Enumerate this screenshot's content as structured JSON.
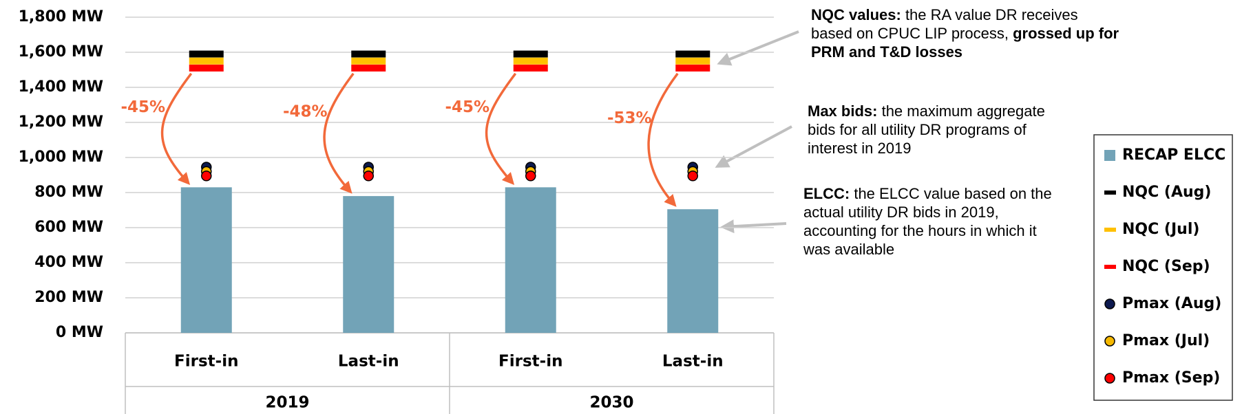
{
  "chart_data": {
    "type": "bar",
    "categories": [
      "First-in",
      "Last-in",
      "First-in",
      "Last-in"
    ],
    "groups": [
      {
        "label": "2019",
        "span": 2
      },
      {
        "label": "2030",
        "span": 2
      }
    ],
    "annotations": [
      "-45%",
      "-48%",
      "-45%",
      "-53%"
    ],
    "series": [
      {
        "name": "RECAP ELCC",
        "color": "#72a3b7",
        "marker": "bar",
        "values": [
          830,
          780,
          830,
          705
        ]
      },
      {
        "name": "NQC (Aug)",
        "color": "#000000",
        "marker": "dash",
        "values": [
          1590,
          1590,
          1590,
          1590
        ]
      },
      {
        "name": "NQC (Jul)",
        "color": "#ffc000",
        "marker": "dash",
        "values": [
          1550,
          1550,
          1550,
          1550
        ]
      },
      {
        "name": "NQC (Sep)",
        "color": "#ff0000",
        "marker": "dash",
        "values": [
          1510,
          1510,
          1510,
          1510
        ]
      },
      {
        "name": "Pmax (Aug)",
        "color": "#0d1a4f",
        "marker": "circle",
        "values": [
          945,
          945,
          945,
          945
        ]
      },
      {
        "name": "Pmax (Jul)",
        "color": "#f5b800",
        "marker": "circle",
        "values": [
          920,
          920,
          920,
          920
        ]
      },
      {
        "name": "Pmax (Sep)",
        "color": "#ff0000",
        "marker": "circle",
        "values": [
          895,
          895,
          895,
          895
        ]
      }
    ],
    "ylim": [
      0,
      1800
    ],
    "yticks": [
      {
        "value": 0,
        "label": "0 MW"
      },
      {
        "value": 200,
        "label": "200 MW"
      },
      {
        "value": 400,
        "label": "400 MW"
      },
      {
        "value": 600,
        "label": "600 MW"
      },
      {
        "value": 800,
        "label": "800 MW"
      },
      {
        "value": 1000,
        "label": "1,000 MW"
      },
      {
        "value": 1200,
        "label": "1,200 MW"
      },
      {
        "value": 1400,
        "label": "1,400 MW"
      },
      {
        "value": 1600,
        "label": "1,600 MW"
      },
      {
        "value": 1800,
        "label": "1,800 MW"
      }
    ],
    "grid": true,
    "legend": "right",
    "notes": [
      {
        "parts": [
          {
            "text": "NQC values:",
            "bold": true
          },
          {
            "text": " the RA value DR receives based on CPUC LIP process, "
          },
          {
            "text": "grossed up for PRM and T&D losses",
            "bold": true
          }
        ]
      },
      {
        "parts": [
          {
            "text": "Max bids:",
            "bold": true
          },
          {
            "text": " the maximum aggregate bids for all utility DR programs of interest in 2019"
          }
        ]
      },
      {
        "parts": [
          {
            "text": "ELCC:",
            "bold": true
          },
          {
            "text": " the ELCC value based on the actual utility DR bids in 2019, accounting for the hours in which it was available"
          }
        ]
      }
    ]
  }
}
